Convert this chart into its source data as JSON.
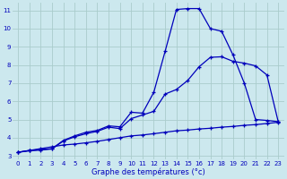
{
  "xlabel": "Graphe des températures (°c)",
  "bg_color": "#cce8ee",
  "grid_color": "#aacccc",
  "line_color": "#0000bb",
  "xlim": [
    -0.5,
    23.5
  ],
  "ylim": [
    2.8,
    11.4
  ],
  "yticks": [
    3,
    4,
    5,
    6,
    7,
    8,
    9,
    10,
    11
  ],
  "xticks": [
    0,
    1,
    2,
    3,
    4,
    5,
    6,
    7,
    8,
    9,
    10,
    11,
    12,
    13,
    14,
    15,
    16,
    17,
    18,
    19,
    20,
    21,
    22,
    23
  ],
  "series1_x": [
    0,
    1,
    2,
    3,
    4,
    5,
    6,
    7,
    8,
    9,
    10,
    11,
    12,
    13,
    14,
    15,
    16,
    17,
    18,
    19,
    20,
    21,
    22,
    23
  ],
  "series1_y": [
    3.2,
    3.3,
    3.4,
    3.5,
    3.6,
    3.65,
    3.72,
    3.8,
    3.9,
    4.0,
    4.1,
    4.15,
    4.22,
    4.3,
    4.38,
    4.42,
    4.48,
    4.52,
    4.58,
    4.62,
    4.68,
    4.72,
    4.78,
    4.85
  ],
  "series2_x": [
    0,
    1,
    2,
    3,
    4,
    5,
    6,
    7,
    8,
    9,
    10,
    11,
    12,
    13,
    14,
    15,
    16,
    17,
    18,
    19,
    20,
    21,
    22,
    23
  ],
  "series2_y": [
    3.2,
    3.3,
    3.35,
    3.4,
    3.85,
    4.1,
    4.3,
    4.4,
    4.65,
    4.6,
    5.4,
    5.35,
    6.5,
    8.75,
    11.05,
    11.1,
    11.1,
    10.0,
    9.85,
    8.55,
    7.0,
    5.0,
    4.95,
    4.88
  ],
  "series3_x": [
    0,
    1,
    2,
    3,
    4,
    5,
    6,
    7,
    8,
    9,
    10,
    11,
    12,
    13,
    14,
    15,
    16,
    17,
    18,
    19,
    20,
    21,
    22,
    23
  ],
  "series3_y": [
    3.2,
    3.28,
    3.32,
    3.38,
    3.82,
    4.05,
    4.22,
    4.35,
    4.58,
    4.5,
    5.05,
    5.25,
    5.45,
    6.4,
    6.65,
    7.15,
    7.9,
    8.42,
    8.45,
    8.2,
    8.1,
    7.95,
    7.45,
    4.88
  ]
}
